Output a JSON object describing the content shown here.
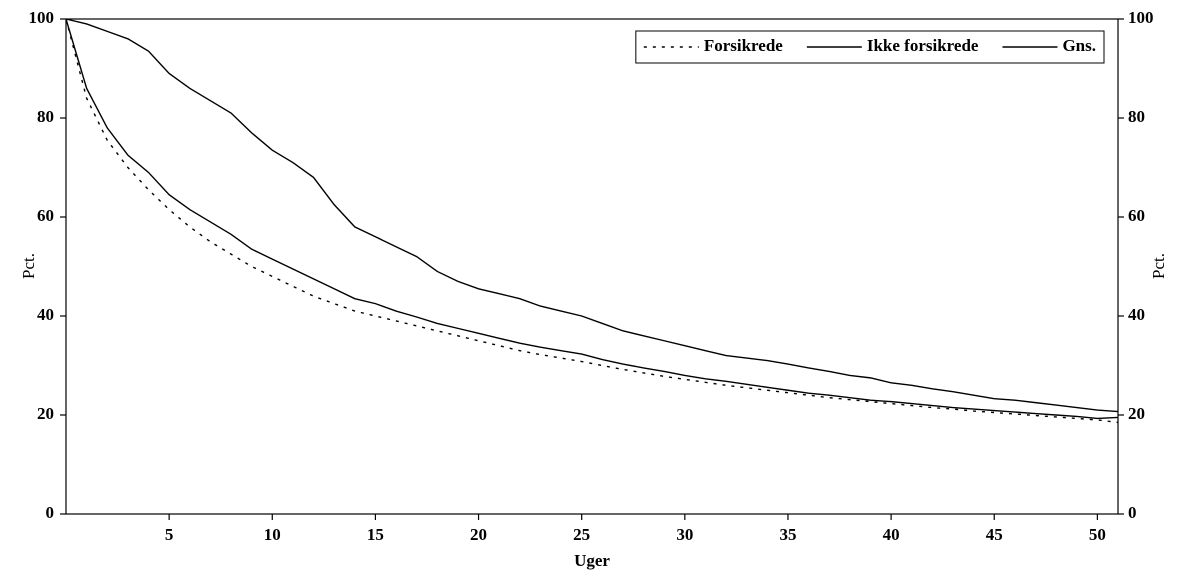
{
  "chart_data": {
    "type": "line",
    "xlabel": "Uger",
    "ylabel": "Pct.",
    "y2label": "Pct.",
    "x": [
      0,
      1,
      2,
      3,
      4,
      5,
      6,
      7,
      8,
      9,
      10,
      11,
      12,
      13,
      14,
      15,
      16,
      17,
      18,
      19,
      20,
      21,
      22,
      23,
      24,
      25,
      26,
      27,
      28,
      29,
      30,
      31,
      32,
      33,
      34,
      35,
      36,
      37,
      38,
      39,
      40,
      41,
      42,
      43,
      44,
      45,
      46,
      47,
      48,
      49,
      50,
      51
    ],
    "series": [
      {
        "name": "Forsikrede",
        "color": "#000000",
        "dash": "dotted",
        "values": [
          100,
          84,
          75.5,
          70,
          65.5,
          61.5,
          58,
          55,
          52.5,
          50,
          48,
          46,
          44,
          42.5,
          41,
          40,
          39,
          38,
          37,
          36,
          35,
          34,
          33,
          32.2,
          31.5,
          30.8,
          30,
          29.2,
          28.5,
          27.8,
          27.2,
          26.6,
          26,
          25.5,
          25,
          24.5,
          24,
          23.5,
          23.1,
          22.7,
          22.3,
          21.9,
          21.5,
          21.2,
          20.8,
          20.5,
          20.2,
          19.9,
          19.6,
          19.3,
          19,
          18.5
        ]
      },
      {
        "name": "Ikke forsikrede",
        "color": "#000000",
        "dash": "solid",
        "values": [
          100,
          99,
          97.5,
          96,
          93.5,
          89,
          86,
          83.5,
          81,
          77,
          73.5,
          71,
          68,
          62.5,
          58,
          56,
          54,
          52,
          49,
          47,
          45.5,
          44.5,
          43.5,
          42,
          41,
          40,
          38.5,
          37,
          36,
          35,
          34,
          33,
          32,
          31.5,
          31,
          30.3,
          29.5,
          28.8,
          28,
          27.5,
          26.5,
          26,
          25.3,
          24.7,
          24,
          23.3,
          23,
          22.5,
          22,
          21.5,
          21,
          20.7
        ]
      },
      {
        "name": "Gns.",
        "color": "#000000",
        "dash": "solid",
        "values": [
          100,
          86,
          78,
          72.5,
          69,
          64.5,
          61.5,
          59,
          56.5,
          53.5,
          51.5,
          49.5,
          47.5,
          45.5,
          43.5,
          42.5,
          41,
          39.8,
          38.5,
          37.5,
          36.5,
          35.5,
          34.5,
          33.7,
          33,
          32.3,
          31.2,
          30.3,
          29.5,
          28.8,
          28,
          27.3,
          26.8,
          26.2,
          25.6,
          25,
          24.4,
          24,
          23.5,
          23,
          22.7,
          22.3,
          21.9,
          21.5,
          21.2,
          20.9,
          20.6,
          20.3,
          20,
          19.7,
          19.3,
          19.5
        ]
      }
    ],
    "xlim": [
      0,
      51
    ],
    "xticks": [
      5,
      10,
      15,
      20,
      25,
      30,
      35,
      40,
      45,
      50
    ],
    "ylim": [
      0,
      100
    ],
    "yticks": [
      0,
      20,
      40,
      60,
      80,
      100
    ],
    "y2lim": [
      0,
      100
    ],
    "y2ticks": [
      0,
      20,
      40,
      60,
      80,
      100
    ],
    "grid": false,
    "legend": "upper right"
  }
}
